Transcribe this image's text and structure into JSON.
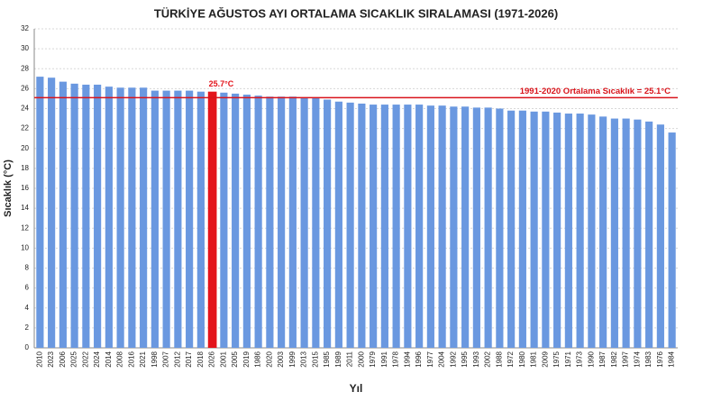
{
  "chart_data": {
    "type": "bar",
    "title": "TÜRKİYE AĞUSTOS AYI ORTALAMA SICAKLIK SIRALAMASI (1971-2026)",
    "x_label": "Yıl",
    "y_label": "Sıcaklık (°C)",
    "categories": [
      "2010",
      "2023",
      "2006",
      "2025",
      "2022",
      "2024",
      "2014",
      "2008",
      "2016",
      "2021",
      "1998",
      "2007",
      "2012",
      "2017",
      "2018",
      "2026",
      "2001",
      "2005",
      "2019",
      "1986",
      "2020",
      "2003",
      "1999",
      "2013",
      "2015",
      "1985",
      "1989",
      "2011",
      "2000",
      "1979",
      "1991",
      "1978",
      "1994",
      "1996",
      "1977",
      "2004",
      "1992",
      "1995",
      "1993",
      "2002",
      "1988",
      "1972",
      "1980",
      "1981",
      "2009",
      "1975",
      "1971",
      "1973",
      "1990",
      "1987",
      "1982",
      "1997",
      "1974",
      "1983",
      "1976",
      "1984"
    ],
    "values": [
      27.2,
      27.1,
      26.7,
      26.5,
      26.4,
      26.4,
      26.2,
      26.1,
      26.1,
      26.1,
      25.8,
      25.8,
      25.8,
      25.8,
      25.7,
      25.7,
      25.6,
      25.5,
      25.4,
      25.3,
      25.2,
      25.2,
      25.2,
      25.1,
      25.1,
      24.9,
      24.7,
      24.6,
      24.5,
      24.4,
      24.4,
      24.4,
      24.4,
      24.4,
      24.3,
      24.3,
      24.2,
      24.2,
      24.1,
      24.1,
      24.0,
      23.8,
      23.8,
      23.7,
      23.7,
      23.6,
      23.5,
      23.5,
      23.4,
      23.2,
      23.0,
      23.0,
      22.9,
      22.7,
      22.4,
      21.6
    ],
    "value_labels": [
      null,
      null,
      null,
      null,
      null,
      null,
      null,
      null,
      null,
      null,
      null,
      null,
      null,
      null,
      null,
      "25.7°C",
      null,
      null,
      null,
      null,
      null,
      null,
      null,
      null,
      null,
      null,
      null,
      null,
      null,
      null,
      null,
      null,
      null,
      null,
      null,
      null,
      null,
      null,
      null,
      null,
      null,
      null,
      null,
      null,
      null,
      null,
      null,
      null,
      null,
      null,
      null,
      null,
      null,
      null,
      null,
      null
    ],
    "color": "#6a98e0",
    "highlight_color": "#e3141b",
    "reference_line": {
      "value": 25.1,
      "label": "1991-2020 Ortalama Sıcaklık = 25.1°C",
      "color": "#d9141b"
    },
    "ylim": [
      0,
      32
    ],
    "yticks": [
      0,
      2,
      4,
      6,
      8,
      10,
      12,
      14,
      16,
      18,
      20,
      22,
      24,
      26,
      28,
      30,
      32
    ],
    "grid": true
  }
}
